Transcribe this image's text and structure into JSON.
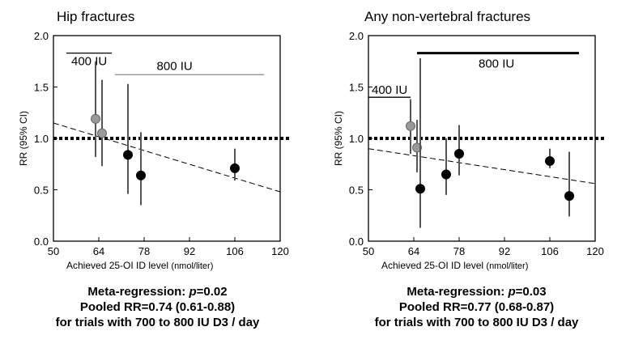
{
  "colors": {
    "low_dose_point": "#9a9a9a",
    "high_dose_point": "#000000",
    "axis": "#000000",
    "ci_line": "#555555"
  },
  "chart_data": [
    {
      "type": "scatter",
      "title": "Hip fractures",
      "xlabel": "Achieved 25-OI ID level",
      "xlabel_unit": "(nmol/liter)",
      "ylabel": "RR (95% CI)",
      "xlim": [
        50,
        120
      ],
      "ylim": [
        0,
        2.0
      ],
      "x_ticks": [
        50,
        64,
        78,
        92,
        106,
        120
      ],
      "y_ticks": [
        "0.0",
        "0.5",
        "1.0",
        "1.5",
        "2.0"
      ],
      "reference_line": {
        "y": 1.0,
        "style": "dotted"
      },
      "regression_line": {
        "x": [
          50,
          120
        ],
        "y": [
          1.15,
          0.48
        ],
        "style": "dashed"
      },
      "dose_bars": [
        {
          "label": "400 IU",
          "x_start": 54,
          "x_end": 68,
          "y": 1.83
        },
        {
          "label": "800 IU",
          "x_start": 69,
          "x_end": 115,
          "y": 1.62
        }
      ],
      "series": [
        {
          "name": "400 IU",
          "points": [
            {
              "x": 63,
              "y": 1.19,
              "lo": 0.82,
              "hi": 1.75
            },
            {
              "x": 65,
              "y": 1.05,
              "lo": 0.73,
              "hi": 1.57
            }
          ]
        },
        {
          "name": "800 IU",
          "points": [
            {
              "x": 73,
              "y": 0.84,
              "lo": 0.46,
              "hi": 1.53
            },
            {
              "x": 77,
              "y": 0.64,
              "lo": 0.35,
              "hi": 1.06
            },
            {
              "x": 106,
              "y": 0.71,
              "lo": 0.59,
              "hi": 0.9
            }
          ]
        }
      ]
    },
    {
      "type": "scatter",
      "title": "Any non-vertebral fractures",
      "xlabel": "Achieved 25-OI ID level",
      "xlabel_unit": "(nmol/liter)",
      "ylabel": "RR (95% CI)",
      "xlim": [
        50,
        120
      ],
      "ylim": [
        0,
        2.0
      ],
      "x_ticks": [
        50,
        64,
        78,
        92,
        106,
        120
      ],
      "y_ticks": [
        "0.0",
        "0.5",
        "1.0",
        "1.5",
        "2.0"
      ],
      "reference_line": {
        "y": 1.0,
        "style": "dotted"
      },
      "regression_line": {
        "x": [
          50,
          120
        ],
        "y": [
          0.9,
          0.56
        ],
        "style": "dashed"
      },
      "dose_bars": [
        {
          "label": "400 IU",
          "x_start": 50,
          "x_end": 63,
          "y": 1.4
        },
        {
          "label": "800 IU",
          "x_start": 65,
          "x_end": 115,
          "y": 1.83
        }
      ],
      "series": [
        {
          "name": "400 IU",
          "points": [
            {
              "x": 63,
              "y": 1.12,
              "lo": 0.85,
              "hi": 1.38
            },
            {
              "x": 65,
              "y": 0.91,
              "lo": 0.67,
              "hi": 1.18
            }
          ]
        },
        {
          "name": "800 IU",
          "points": [
            {
              "x": 66,
              "y": 0.51,
              "lo": 0.13,
              "hi": 1.78
            },
            {
              "x": 74,
              "y": 0.65,
              "lo": 0.45,
              "hi": 1.0
            },
            {
              "x": 78,
              "y": 0.85,
              "lo": 0.64,
              "hi": 1.13
            },
            {
              "x": 106,
              "y": 0.78,
              "lo": 0.71,
              "hi": 0.9
            },
            {
              "x": 112,
              "y": 0.44,
              "lo": 0.24,
              "hi": 0.87
            }
          ]
        }
      ]
    }
  ],
  "captions": [
    {
      "line1_prefix": "Meta-regression: ",
      "line1_p": "p",
      "line1_value": "=0.02",
      "line2": "Pooled RR=0.74 (0.61-0.88)",
      "line3": "for trials with 700 to 800 IU D3 / day"
    },
    {
      "line1_prefix": "Meta-regression: ",
      "line1_p": "p",
      "line1_value": "=0.03",
      "line2": "Pooled RR=0.77 (0.68-0.87)",
      "line3": "for trials with 700 to 800 IU D3 / day"
    }
  ]
}
